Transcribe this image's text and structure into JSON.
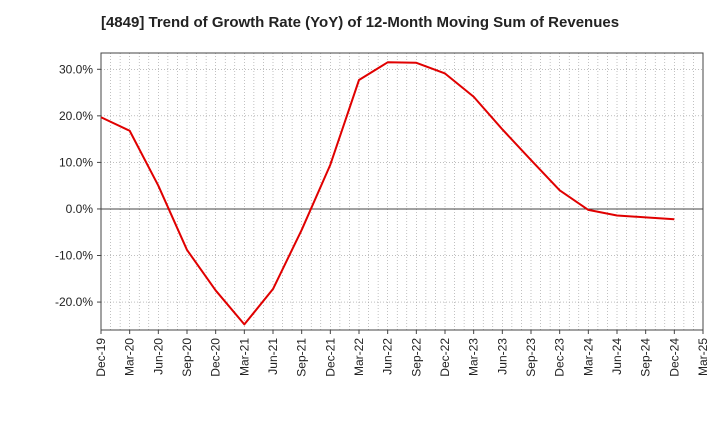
{
  "chart_data": {
    "type": "line",
    "title": "[4849]  Trend of Growth Rate (YoY) of 12-Month Moving Sum of Revenues",
    "xlabel": "",
    "ylabel": "",
    "x_tick_labels": [
      "Dec-19",
      "Mar-20",
      "Jun-20",
      "Sep-20",
      "Dec-20",
      "Mar-21",
      "Jun-21",
      "Sep-21",
      "Dec-21",
      "Mar-22",
      "Jun-22",
      "Sep-22",
      "Dec-22",
      "Mar-23",
      "Jun-23",
      "Sep-23",
      "Dec-23",
      "Mar-24",
      "Jun-24",
      "Sep-24",
      "Dec-24",
      "Mar-25"
    ],
    "y_tick_labels": [
      "30.0%",
      "20.0%",
      "10.0%",
      "0.0%",
      "-10.0%",
      "-20.0%"
    ],
    "y_ticks": [
      30,
      20,
      10,
      0,
      -10,
      -20
    ],
    "ylim": [
      -26,
      33.5
    ],
    "grid": "dotted",
    "series": [
      {
        "color": "#e00000",
        "x": [
          "Dec-19",
          "Mar-20",
          "Jun-20",
          "Sep-20",
          "Dec-20",
          "Mar-21",
          "Jun-21",
          "Sep-21",
          "Dec-21",
          "Mar-22",
          "Jun-22",
          "Sep-22",
          "Dec-22",
          "Mar-23",
          "Jun-23",
          "Sep-23",
          "Dec-23",
          "Mar-24",
          "Jun-24",
          "Sep-24",
          "Dec-24"
        ],
        "values": [
          19.7,
          16.8,
          5.0,
          -8.8,
          -17.5,
          -24.8,
          -17.2,
          -4.5,
          9.5,
          27.7,
          31.5,
          31.4,
          29.1,
          24.1,
          17.1,
          10.5,
          4.0,
          -0.2,
          -1.4,
          -1.8,
          -2.2
        ]
      }
    ]
  }
}
